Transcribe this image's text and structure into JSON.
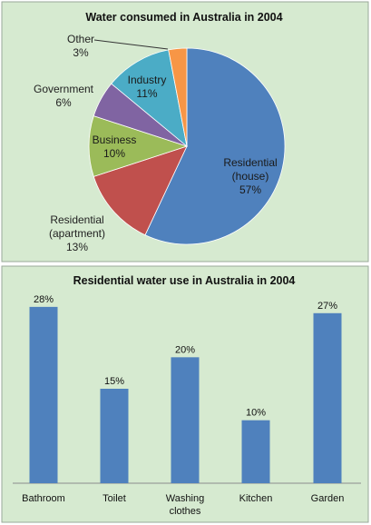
{
  "colors": {
    "panel_bg": "#d6ead0",
    "panel_border": "#9aa89a",
    "bar": "#4f81bd"
  },
  "chart_data": [
    {
      "type": "pie",
      "title": "Water consumed  in Australia in 2004",
      "slices": [
        {
          "name": "Residential (house)",
          "line1": "Residential",
          "line2": "(house)",
          "pct_label": "57%",
          "value": 57,
          "color": "#4f81bd"
        },
        {
          "name": "Residential (apartment)",
          "line1": "Residential",
          "line2": "(apartment)",
          "pct_label": "13%",
          "value": 13,
          "color": "#c0504d"
        },
        {
          "name": "Business",
          "line1": "Business",
          "line2": "",
          "pct_label": "10%",
          "value": 10,
          "color": "#9bbb59"
        },
        {
          "name": "Government",
          "line1": "Government",
          "line2": "",
          "pct_label": "6%",
          "value": 6,
          "color": "#8064a2"
        },
        {
          "name": "Industry",
          "line1": "Industry",
          "line2": "",
          "pct_label": "11%",
          "value": 11,
          "color": "#4bacc6"
        },
        {
          "name": "Other",
          "line1": "Other",
          "line2": "",
          "pct_label": "3%",
          "value": 3,
          "color": "#f79646"
        }
      ]
    },
    {
      "type": "bar",
      "title": "Residential water use in Australia in 2004",
      "categories": [
        "Bathroom",
        "Toilet",
        "Washing clothes",
        "Kitchen",
        "Garden"
      ],
      "category_lines": [
        [
          "Bathroom"
        ],
        [
          "Toilet"
        ],
        [
          "Washing",
          "clothes"
        ],
        [
          "Kitchen"
        ],
        [
          "Garden"
        ]
      ],
      "values": [
        28,
        15,
        20,
        10,
        27
      ],
      "value_labels": [
        "28%",
        "15%",
        "20%",
        "10%",
        "27%"
      ],
      "ylim": [
        0,
        30
      ],
      "grid": false
    }
  ]
}
